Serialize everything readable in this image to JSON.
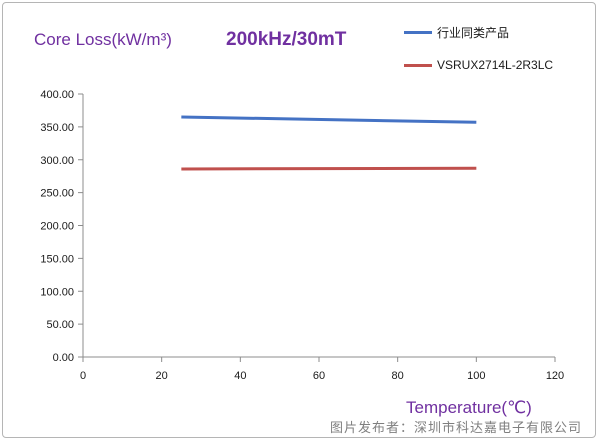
{
  "chart_data": {
    "type": "line",
    "title": "200kHz/30mT",
    "ylabel": "Core Loss(kW/m³)",
    "xlabel": "Temperature(℃)",
    "xlim": [
      0,
      120
    ],
    "ylim": [
      0,
      400
    ],
    "x_ticks": [
      "0",
      "20",
      "40",
      "60",
      "80",
      "100",
      "120"
    ],
    "y_ticks": [
      "0.00",
      "50.00",
      "100.00",
      "150.00",
      "200.00",
      "250.00",
      "300.00",
      "350.00",
      "400.00"
    ],
    "grid": false,
    "legend_position": "top-right",
    "series": [
      {
        "name": "行业同类产品",
        "color": "#4472c4",
        "x": [
          25,
          100
        ],
        "values": [
          365,
          357
        ]
      },
      {
        "name": "VSRUX2714L-2R3LC",
        "color": "#c0504d",
        "x": [
          25,
          100
        ],
        "values": [
          286,
          287
        ]
      }
    ]
  },
  "watermark": "图片发布者：深圳市科达嘉电子有限公司"
}
